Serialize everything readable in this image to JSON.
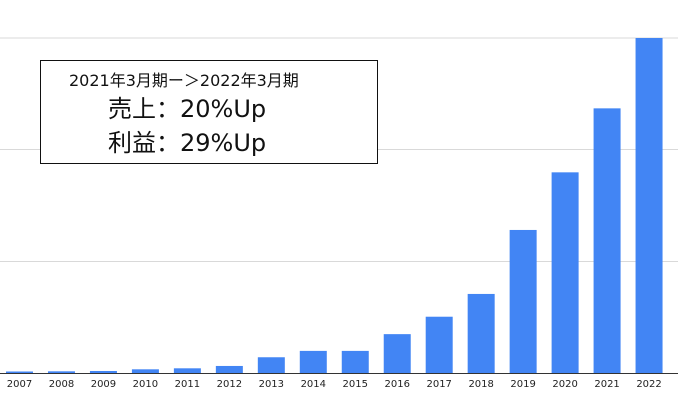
{
  "chart_data": {
    "type": "bar",
    "categories": [
      "2007",
      "2008",
      "2009",
      "2010",
      "2011",
      "2012",
      "2013",
      "2014",
      "2015",
      "2016",
      "2017",
      "2018",
      "2019",
      "2020",
      "2021",
      "2022"
    ],
    "values": [
      0.3,
      0.5,
      0.6,
      1.1,
      1.4,
      2.1,
      4.7,
      6.6,
      6.6,
      11.6,
      16.8,
      23.6,
      42.7,
      59.9,
      79.0,
      100.0
    ],
    "ylim": [
      0,
      100
    ],
    "yticks": [
      0,
      33.3,
      66.7,
      100
    ],
    "grid": true,
    "legend": "none",
    "bar_color": "#4285f4",
    "annotation": {
      "line1": "2021年3月期ー＞2022年3月期",
      "line2": "売上：20%Up",
      "line3": "利益：29%Up"
    }
  }
}
